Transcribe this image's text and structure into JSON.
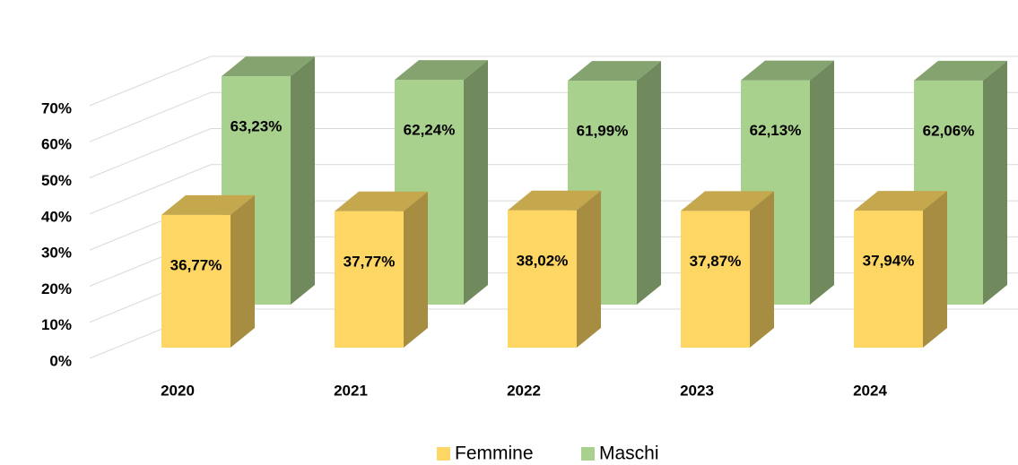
{
  "chart_data": {
    "type": "bar3d",
    "categories": [
      "2020",
      "2021",
      "2022",
      "2023",
      "2024"
    ],
    "series": [
      {
        "name": "Femmine",
        "color": "#fdd663",
        "values": [
          36.77,
          37.77,
          38.02,
          37.87,
          37.94
        ],
        "value_labels": [
          "36,77%",
          "37,77%",
          "38,02%",
          "37,87%",
          "37,94%"
        ]
      },
      {
        "name": "Maschi",
        "color": "#a9d18e",
        "values": [
          63.23,
          62.24,
          61.99,
          62.13,
          62.06
        ],
        "value_labels": [
          "63,23%",
          "62,24%",
          "61,99%",
          "62,13%",
          "62,06%"
        ]
      }
    ],
    "ylim": [
      0,
      70
    ],
    "yticks": [
      {
        "value": 0,
        "label": "0%"
      },
      {
        "value": 10,
        "label": "10%"
      },
      {
        "value": 20,
        "label": "20%"
      },
      {
        "value": 30,
        "label": "30%"
      },
      {
        "value": 40,
        "label": "40%"
      },
      {
        "value": 50,
        "label": "50%"
      },
      {
        "value": 60,
        "label": "60%"
      },
      {
        "value": 70,
        "label": "70%"
      }
    ],
    "grid": true,
    "legend": "bottom"
  }
}
